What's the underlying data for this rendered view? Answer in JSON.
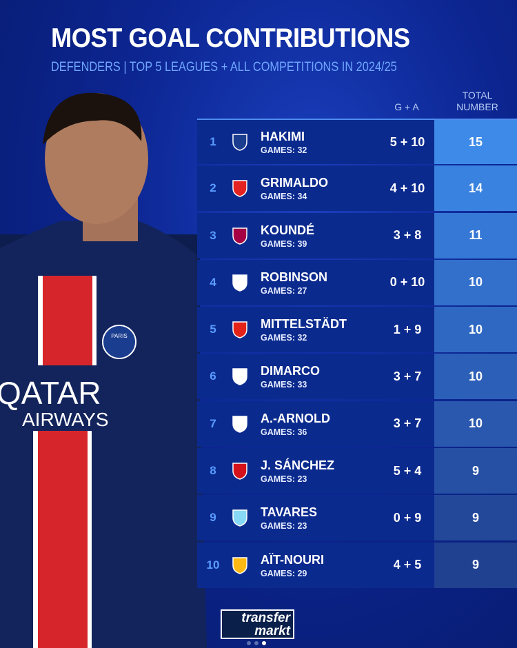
{
  "title": "MOST GOAL CONTRIBUTIONS",
  "subtitle": "DEFENDERS | TOP 5 LEAGUES + ALL COMPETITIONS IN 2024/25",
  "headers": {
    "ga": "G + A",
    "total": "TOTAL NUMBER"
  },
  "rows": [
    {
      "rank": "1",
      "name": "HAKIMI",
      "games": "GAMES: 32",
      "ga": "5 + 10",
      "total": "15",
      "club_icon": "psg-crest",
      "color": "#1b3d8f"
    },
    {
      "rank": "2",
      "name": "GRIMALDO",
      "games": "GAMES: 34",
      "ga": "4 + 10",
      "total": "14",
      "club_icon": "leverkusen-crest",
      "color": "#e32221"
    },
    {
      "rank": "3",
      "name": "KOUNDÉ",
      "games": "GAMES: 39",
      "ga": "3 + 8",
      "total": "11",
      "club_icon": "barcelona-crest",
      "color": "#a50044"
    },
    {
      "rank": "4",
      "name": "ROBINSON",
      "games": "GAMES: 27",
      "ga": "0 + 10",
      "total": "10",
      "club_icon": "fulham-crest",
      "color": "#ffffff"
    },
    {
      "rank": "5",
      "name": "MITTELSTÄDT",
      "games": "GAMES: 32",
      "ga": "1 + 9",
      "total": "10",
      "club_icon": "stuttgart-crest",
      "color": "#e32219"
    },
    {
      "rank": "6",
      "name": "DIMARCO",
      "games": "GAMES: 33",
      "ga": "3 + 7",
      "total": "10",
      "club_icon": "inter-crest",
      "color": "#ffffff"
    },
    {
      "rank": "7",
      "name": "A.-ARNOLD",
      "games": "GAMES: 36",
      "ga": "3 + 7",
      "total": "10",
      "club_icon": "liverpool-crest",
      "color": "#ffffff"
    },
    {
      "rank": "8",
      "name": "J. SÁNCHEZ",
      "games": "GAMES: 23",
      "ga": "5 + 4",
      "total": "9",
      "club_icon": "sevilla-crest",
      "color": "#d5121b"
    },
    {
      "rank": "9",
      "name": "TAVARES",
      "games": "GAMES: 23",
      "ga": "0 + 9",
      "total": "9",
      "club_icon": "lazio-crest",
      "color": "#87d8f7"
    },
    {
      "rank": "10",
      "name": "AÏT-NOURI",
      "games": "GAMES: 29",
      "ga": "4 + 5",
      "total": "9",
      "club_icon": "wolves-crest",
      "color": "#fdb913"
    }
  ],
  "shirt": {
    "sponsor_line1": "QATAR",
    "sponsor_line2": "AIRWAYS",
    "badge": "PARIS"
  },
  "brand": {
    "line1": "transfer",
    "line2": "markt"
  }
}
